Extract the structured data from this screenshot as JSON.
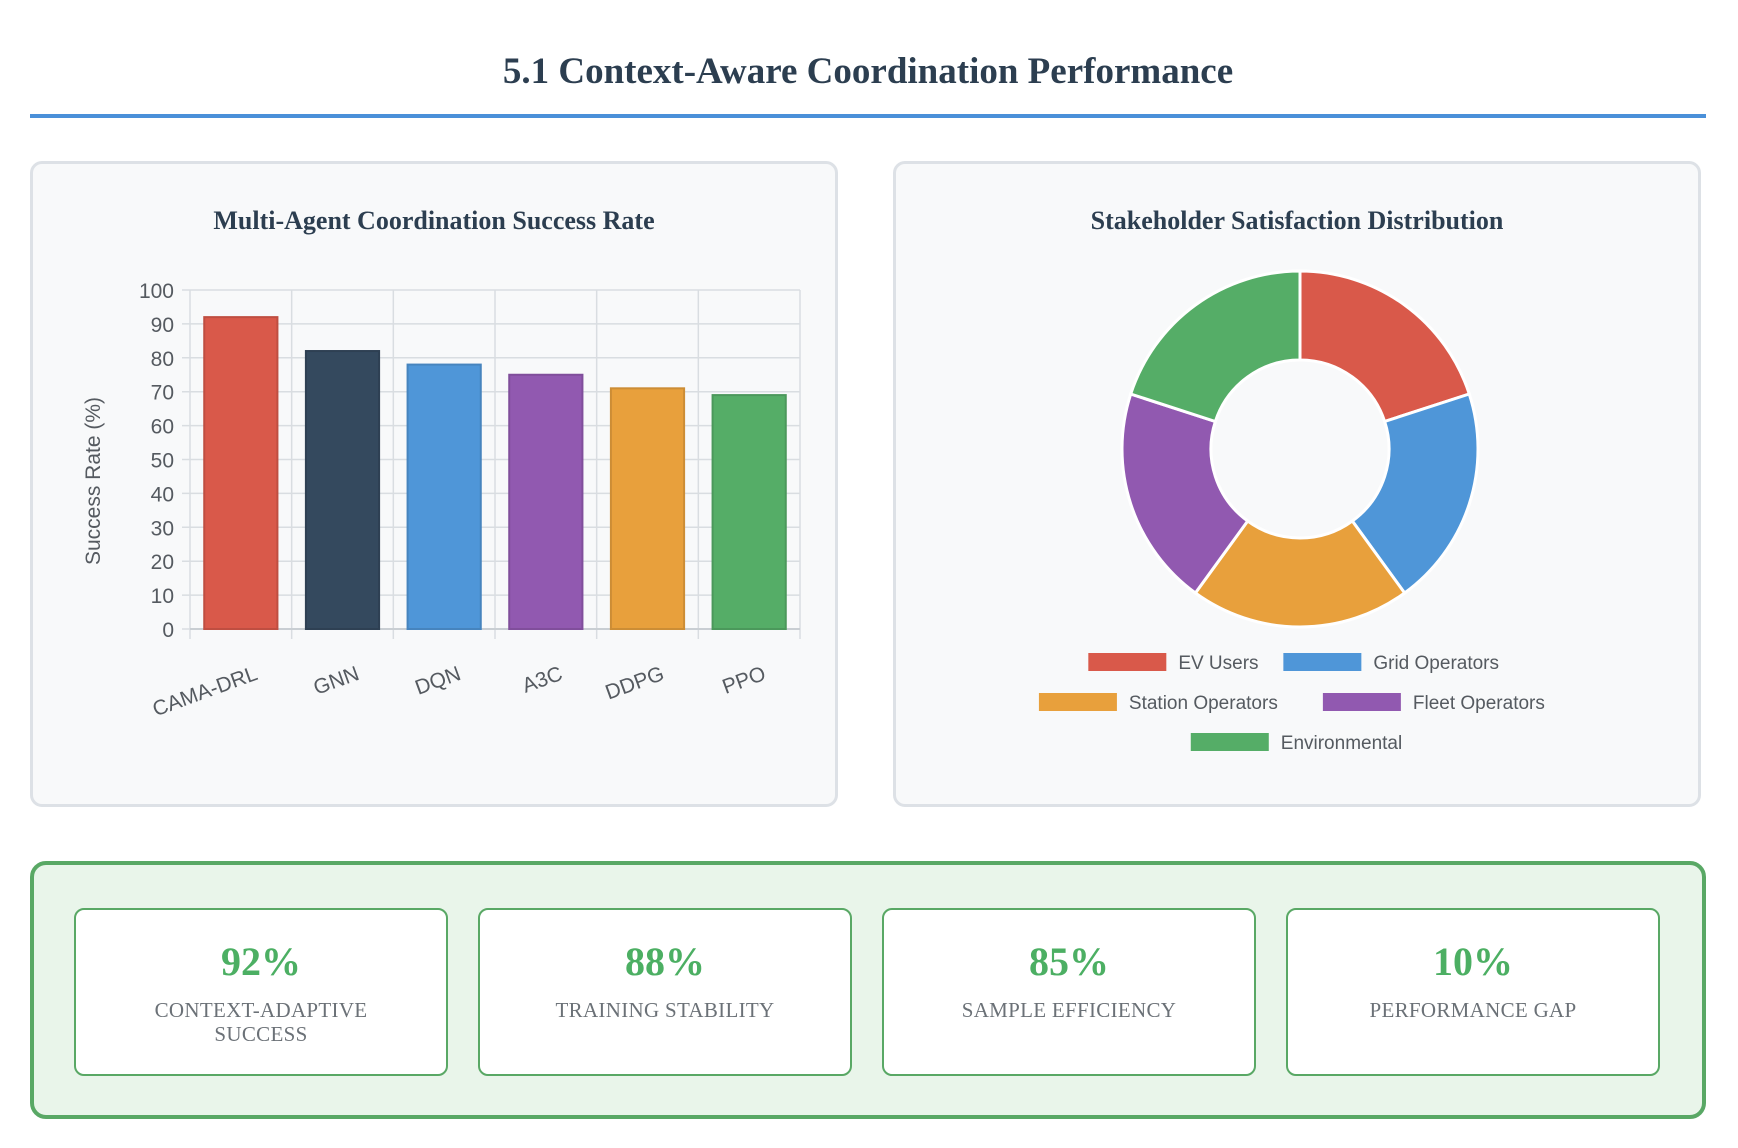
{
  "page": {
    "title": "5.1 Context-Aware Coordination Performance"
  },
  "chart_data": [
    {
      "type": "bar",
      "title": "Multi-Agent Coordination Success Rate",
      "xlabel": "",
      "ylabel": "Success Rate (%)",
      "ylim": [
        0,
        100
      ],
      "yticks": [
        0,
        10,
        20,
        30,
        40,
        50,
        60,
        70,
        80,
        90,
        100
      ],
      "grid": true,
      "categories": [
        "CAMA-DRL",
        "GNN",
        "DQN",
        "A3C",
        "DDPG",
        "PPO"
      ],
      "values": [
        92,
        82,
        78,
        75,
        71,
        69
      ],
      "colors": [
        "#d9594a",
        "#34495e",
        "#4f96d8",
        "#9159b0",
        "#e8a03c",
        "#55ad67"
      ]
    },
    {
      "type": "pie",
      "subtype": "doughnut",
      "title": "Stakeholder Satisfaction Distribution",
      "legend_position": "bottom",
      "labels": [
        "EV Users",
        "Grid Operators",
        "Station Operators",
        "Fleet Operators",
        "Environmental"
      ],
      "values": [
        20,
        20,
        20,
        20,
        20
      ],
      "colors": [
        "#d9594a",
        "#4f96d8",
        "#e8a03c",
        "#9159b0",
        "#55ad67"
      ]
    }
  ],
  "metrics": [
    {
      "value": "92%",
      "label": "Context-Adaptive Success"
    },
    {
      "value": "88%",
      "label": "Training Stability"
    },
    {
      "value": "85%",
      "label": "Sample Efficiency"
    },
    {
      "value": "10%",
      "label": "Performance Gap"
    }
  ]
}
